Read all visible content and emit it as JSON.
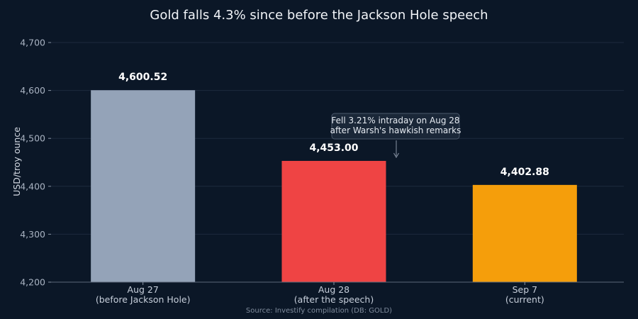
{
  "chart_data": {
    "type": "bar",
    "title": "Gold falls 4.3% since before the Jackson Hole speech",
    "ylabel": "USD/troy ounce",
    "xlabel": "",
    "categories": [
      [
        "Aug 27",
        "(before Jackson Hole)"
      ],
      [
        "Aug 28",
        "(after the speech)"
      ],
      [
        "Sep 7",
        "(current)"
      ]
    ],
    "values": [
      4600.52,
      4453.0,
      4402.88
    ],
    "value_labels": [
      "4,600.52",
      "4,453.00",
      "4,402.88"
    ],
    "colors": [
      "#94a3b8",
      "#ef4444",
      "#f59e0b"
    ],
    "ylim": [
      4200,
      4700
    ],
    "yticks": [
      4200,
      4300,
      4400,
      4500,
      4600,
      4700
    ],
    "ytick_labels": [
      "4,200",
      "4,300",
      "4,400",
      "4,500",
      "4,600",
      "4,700"
    ],
    "grid": true,
    "annotation": {
      "lines": [
        "Fell 3.21% intraday on Aug 28",
        "after Warsh's hawkish remarks"
      ],
      "category_index": 1
    },
    "source": "Source: Investify compilation (DB: GOLD)"
  }
}
